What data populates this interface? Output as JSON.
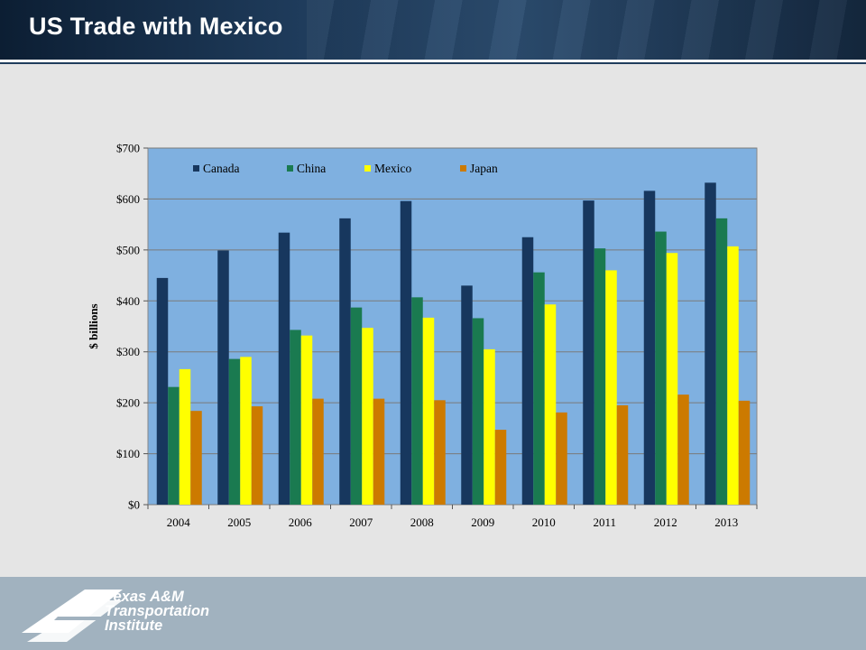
{
  "header": {
    "title": "US Trade with Mexico"
  },
  "footer": {
    "logo_lines": [
      "Texas A&M",
      "Transportation",
      "Institute"
    ]
  },
  "chart_data": {
    "type": "bar",
    "categories": [
      "2004",
      "2005",
      "2006",
      "2007",
      "2008",
      "2009",
      "2010",
      "2011",
      "2012",
      "2013"
    ],
    "series": [
      {
        "name": "Canada",
        "color": "#17375e",
        "values": [
          445,
          499,
          534,
          562,
          596,
          430,
          525,
          597,
          616,
          632
        ]
      },
      {
        "name": "China",
        "color": "#1a7a50",
        "values": [
          231,
          286,
          343,
          387,
          407,
          366,
          456,
          503,
          536,
          562
        ]
      },
      {
        "name": "Mexico",
        "color": "#ffff00",
        "values": [
          266,
          290,
          332,
          347,
          367,
          305,
          393,
          460,
          494,
          507
        ]
      },
      {
        "name": "Japan",
        "color": "#cc7a00",
        "values": [
          184,
          193,
          208,
          208,
          205,
          147,
          181,
          195,
          216,
          204
        ]
      }
    ],
    "ylabel": "$ billions",
    "xlabel": "",
    "ylim": [
      0,
      700
    ],
    "yticks": [
      0,
      100,
      200,
      300,
      400,
      500,
      600,
      700
    ],
    "ytick_labels": [
      "$0",
      "$100",
      "$200",
      "$300",
      "$400",
      "$500",
      "$600",
      "$700"
    ],
    "grid": true,
    "legend": "top",
    "plot_background": "#7fb0e0"
  }
}
